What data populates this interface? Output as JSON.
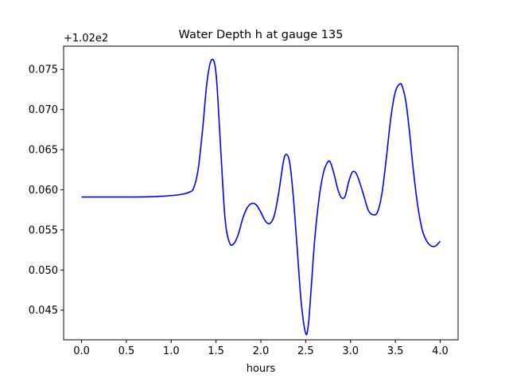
{
  "chart_data": {
    "type": "line",
    "title": "Water Depth h at gauge 135",
    "xlabel": "hours",
    "ylabel": "",
    "offset_label": "+1.02e2",
    "xlim": [
      -0.2,
      4.2
    ],
    "ylim": [
      0.0413,
      0.0779
    ],
    "x_ticks": [
      0.0,
      0.5,
      1.0,
      1.5,
      2.0,
      2.5,
      3.0,
      3.5,
      4.0
    ],
    "x_tick_labels": [
      "0.0",
      "0.5",
      "1.0",
      "1.5",
      "2.0",
      "2.5",
      "3.0",
      "3.5",
      "4.0"
    ],
    "y_ticks": [
      0.045,
      0.05,
      0.055,
      0.06,
      0.065,
      0.07,
      0.075
    ],
    "y_tick_labels": [
      "0.045",
      "0.050",
      "0.055",
      "0.060",
      "0.065",
      "0.070",
      "0.075"
    ],
    "grid": false,
    "series": [
      {
        "color": "#0000ff",
        "x": [
          0.0,
          0.3,
          0.6,
          0.9,
          1.1,
          1.2,
          1.25,
          1.3,
          1.35,
          1.4,
          1.45,
          1.5,
          1.55,
          1.6,
          1.65,
          1.7,
          1.75,
          1.8,
          1.85,
          1.9,
          1.95,
          2.0,
          2.05,
          2.1,
          2.15,
          2.2,
          2.25,
          2.28,
          2.32,
          2.36,
          2.4,
          2.45,
          2.5,
          2.53,
          2.56,
          2.6,
          2.65,
          2.7,
          2.75,
          2.78,
          2.82,
          2.86,
          2.9,
          2.94,
          2.98,
          3.02,
          3.06,
          3.1,
          3.15,
          3.2,
          3.25,
          3.3,
          3.35,
          3.4,
          3.45,
          3.5,
          3.55,
          3.58,
          3.62,
          3.66,
          3.7,
          3.75,
          3.8,
          3.85,
          3.9,
          3.95,
          4.0
        ],
        "y": [
          0.0591,
          0.0591,
          0.0591,
          0.0592,
          0.0594,
          0.0597,
          0.0602,
          0.0625,
          0.0675,
          0.0735,
          0.0762,
          0.0745,
          0.0655,
          0.0565,
          0.0534,
          0.0533,
          0.0545,
          0.0565,
          0.0578,
          0.0583,
          0.0581,
          0.0572,
          0.0561,
          0.0558,
          0.0568,
          0.0597,
          0.0634,
          0.0644,
          0.0635,
          0.0594,
          0.0535,
          0.046,
          0.0421,
          0.0432,
          0.0475,
          0.0537,
          0.059,
          0.0622,
          0.0635,
          0.0633,
          0.0618,
          0.06,
          0.059,
          0.0592,
          0.061,
          0.0622,
          0.0621,
          0.061,
          0.0592,
          0.0574,
          0.0569,
          0.0572,
          0.0595,
          0.064,
          0.069,
          0.0722,
          0.0732,
          0.0728,
          0.0708,
          0.067,
          0.0625,
          0.058,
          0.055,
          0.0536,
          0.053,
          0.053,
          0.0536
        ]
      }
    ]
  }
}
